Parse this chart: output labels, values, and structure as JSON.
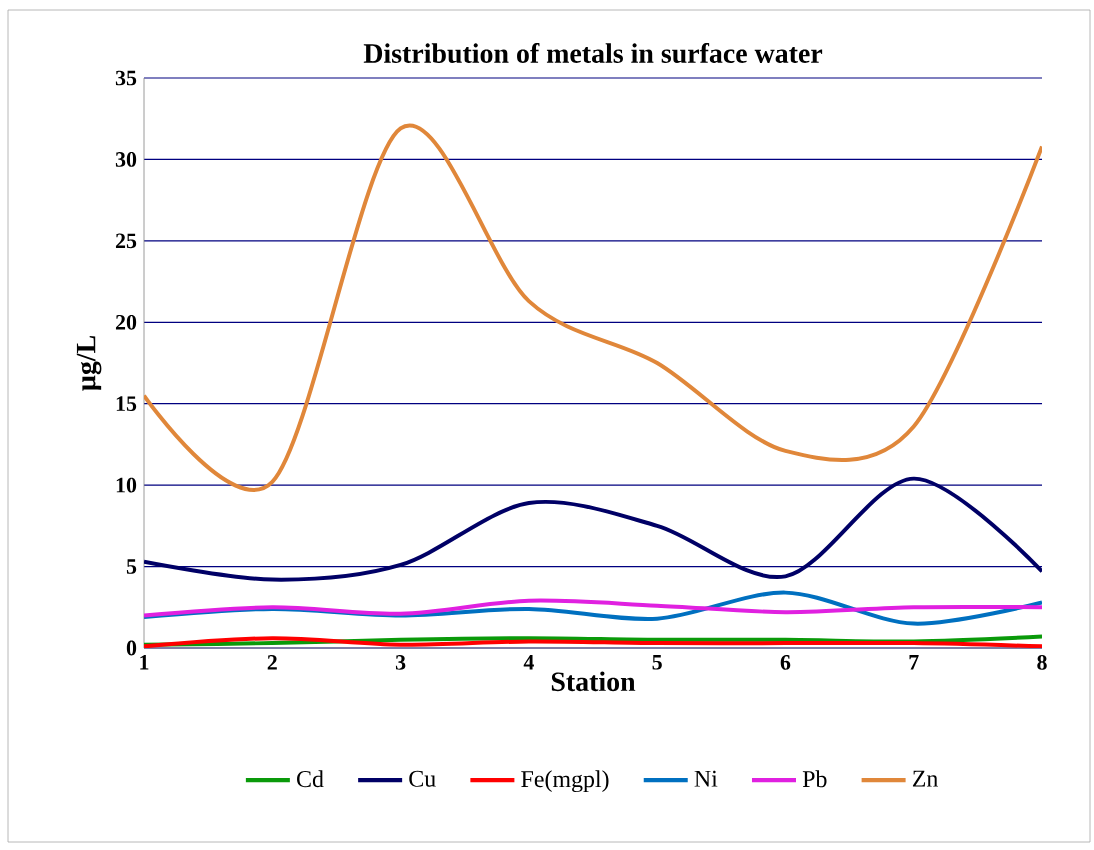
{
  "chart_data": {
    "type": "line",
    "title": "Distribution of metals in surface water",
    "xlabel": "Station",
    "ylabel": "µg/L",
    "x": [
      1,
      2,
      3,
      4,
      5,
      6,
      7,
      8
    ],
    "xlim": [
      1,
      8
    ],
    "xticks": [
      1,
      2,
      3,
      4,
      5,
      6,
      7,
      8
    ],
    "ylim": [
      0,
      35
    ],
    "yticks": [
      0,
      5,
      10,
      15,
      20,
      25,
      30,
      35
    ],
    "grid": "y",
    "legend": "bottom",
    "marker": "none",
    "line_style": "solid",
    "series": [
      {
        "name": "Cd",
        "color": "#0a9a0a",
        "values": [
          0.2,
          0.3,
          0.5,
          0.6,
          0.5,
          0.5,
          0.4,
          0.7
        ]
      },
      {
        "name": "Cu",
        "color": "#000066",
        "values": [
          5.3,
          4.2,
          5.1,
          8.9,
          7.5,
          4.4,
          10.4,
          4.7
        ]
      },
      {
        "name": "Fe(mgpl)",
        "color": "#ff0000",
        "values": [
          0.1,
          0.6,
          0.2,
          0.4,
          0.3,
          0.3,
          0.3,
          0.1
        ]
      },
      {
        "name": "Ni",
        "color": "#0070c0",
        "values": [
          1.9,
          2.4,
          2.0,
          2.4,
          1.8,
          3.4,
          1.5,
          2.8
        ]
      },
      {
        "name": "Pb",
        "color": "#e020e0",
        "values": [
          2.0,
          2.5,
          2.1,
          2.9,
          2.6,
          2.2,
          2.5,
          2.5
        ]
      },
      {
        "name": "Zn",
        "color": "#e0873a",
        "values": [
          15.5,
          10.2,
          31.9,
          21.3,
          17.5,
          12.1,
          13.6,
          30.8
        ]
      }
    ]
  }
}
